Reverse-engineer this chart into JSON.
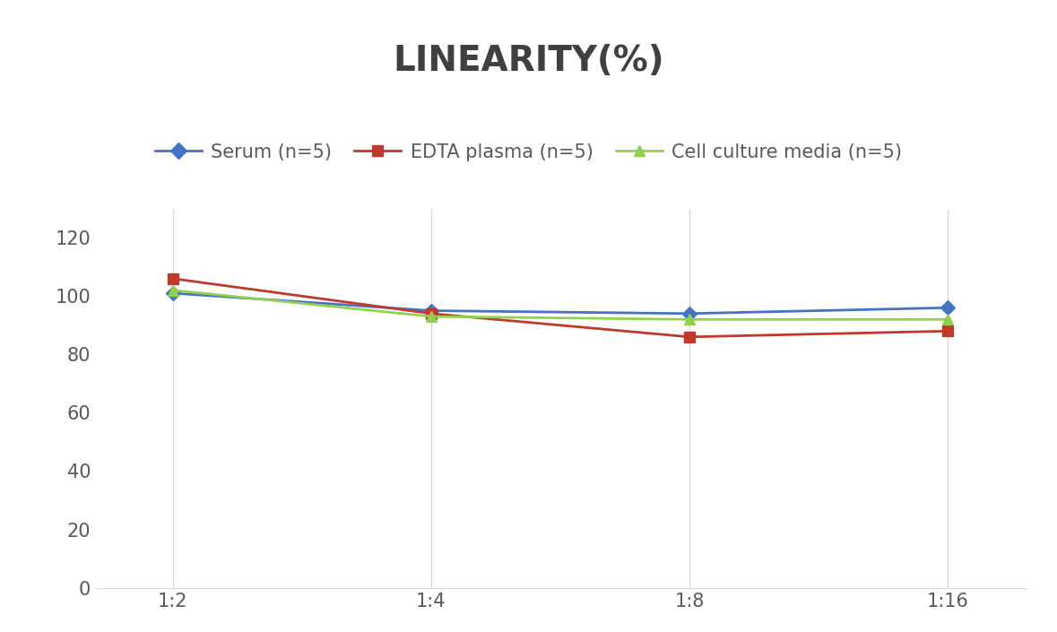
{
  "title": "LINEARITY(%)",
  "x_labels": [
    "1:2",
    "1:4",
    "1:8",
    "1:16"
  ],
  "series": [
    {
      "name": "Serum (n=5)",
      "values": [
        101,
        95,
        94,
        96
      ],
      "color": "#4472C4",
      "marker": "D",
      "marker_color": "#4472C4"
    },
    {
      "name": "EDTA plasma (n=5)",
      "values": [
        106,
        94,
        86,
        88
      ],
      "color": "#C0392B",
      "marker": "s",
      "marker_color": "#C0392B"
    },
    {
      "name": "Cell culture media (n=5)",
      "values": [
        102,
        93,
        92,
        92
      ],
      "color": "#92D050",
      "marker": "^",
      "marker_color": "#92D050"
    }
  ],
  "ylim": [
    0,
    130
  ],
  "yticks": [
    0,
    20,
    40,
    60,
    80,
    100,
    120
  ],
  "title_fontsize": 28,
  "legend_fontsize": 15,
  "tick_fontsize": 15,
  "background_color": "#ffffff",
  "grid_color": "#d9d9d9"
}
